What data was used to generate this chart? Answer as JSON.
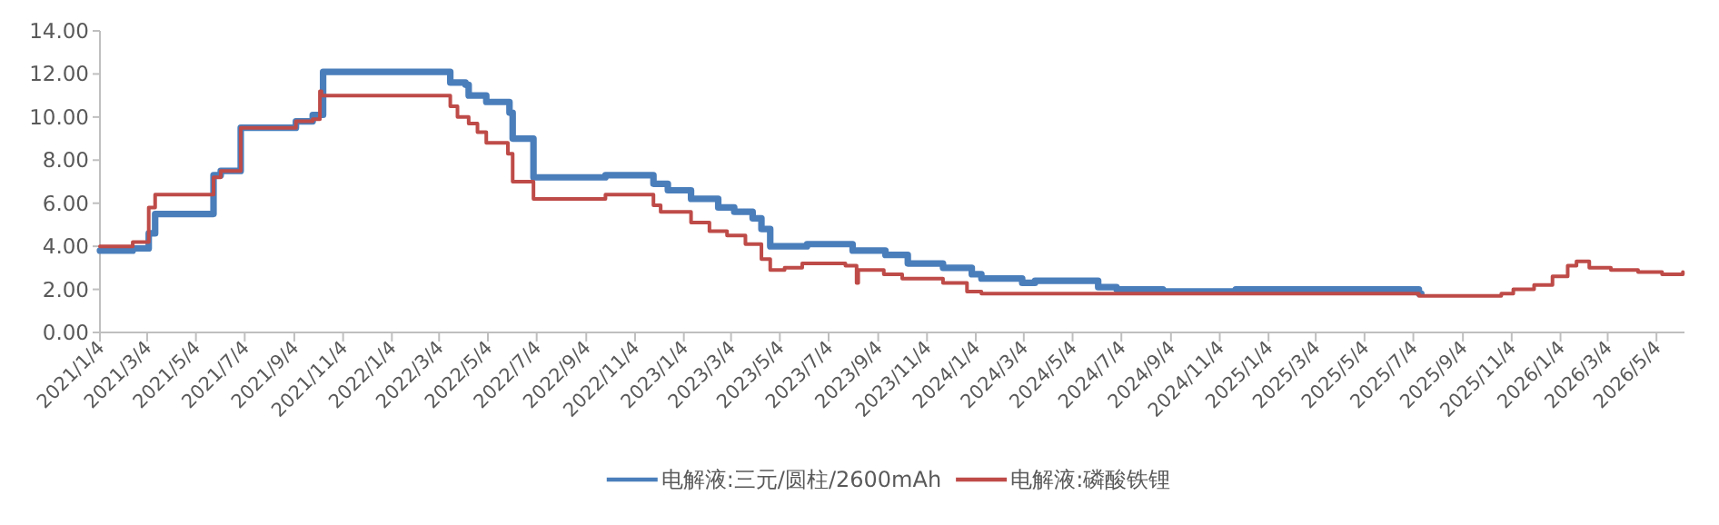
{
  "chart_data": {
    "type": "step",
    "xlim": [
      "2021-01-04",
      "2026-06-08"
    ],
    "ylim": [
      0,
      14
    ],
    "xticks": [
      {
        "value": "2021-01-04",
        "label": "2021/1/4"
      },
      {
        "value": "2021-03-04",
        "label": "2021/3/4"
      },
      {
        "value": "2021-05-04",
        "label": "2021/5/4"
      },
      {
        "value": "2021-07-04",
        "label": "2021/7/4"
      },
      {
        "value": "2021-09-04",
        "label": "2021/9/4"
      },
      {
        "value": "2021-11-04",
        "label": "2021/11/4"
      },
      {
        "value": "2022-01-04",
        "label": "2022/1/4"
      },
      {
        "value": "2022-03-04",
        "label": "2022/3/4"
      },
      {
        "value": "2022-05-04",
        "label": "2022/5/4"
      },
      {
        "value": "2022-07-04",
        "label": "2022/7/4"
      },
      {
        "value": "2022-09-04",
        "label": "2022/9/4"
      },
      {
        "value": "2022-11-04",
        "label": "2022/11/4"
      },
      {
        "value": "2023-01-04",
        "label": "2023/1/4"
      },
      {
        "value": "2023-03-04",
        "label": "2023/3/4"
      },
      {
        "value": "2023-05-04",
        "label": "2023/5/4"
      },
      {
        "value": "2023-07-04",
        "label": "2023/7/4"
      },
      {
        "value": "2023-09-04",
        "label": "2023/9/4"
      },
      {
        "value": "2023-11-04",
        "label": "2023/11/4"
      },
      {
        "value": "2024-01-04",
        "label": "2024/1/4"
      },
      {
        "value": "2024-03-04",
        "label": "2024/3/4"
      },
      {
        "value": "2024-05-04",
        "label": "2024/5/4"
      },
      {
        "value": "2024-07-04",
        "label": "2024/7/4"
      },
      {
        "value": "2024-09-04",
        "label": "2024/9/4"
      },
      {
        "value": "2024-11-04",
        "label": "2024/11/4"
      },
      {
        "value": "2025-01-04",
        "label": "2025/1/4"
      },
      {
        "value": "2025-03-04",
        "label": "2025/3/4"
      },
      {
        "value": "2025-05-04",
        "label": "2025/5/4"
      },
      {
        "value": "2025-07-04",
        "label": "2025/7/4"
      },
      {
        "value": "2025-09-04",
        "label": "2025/9/4"
      },
      {
        "value": "2025-11-04",
        "label": "2025/11/4"
      },
      {
        "value": "2026-01-04",
        "label": "2026/1/4"
      },
      {
        "value": "2026-03-04",
        "label": "2026/3/4"
      },
      {
        "value": "2026-05-04",
        "label": "2026/5/4"
      }
    ],
    "yticks": [
      {
        "value": 0,
        "label": "0.00"
      },
      {
        "value": 2,
        "label": "2.00"
      },
      {
        "value": 4,
        "label": "4.00"
      },
      {
        "value": 6,
        "label": "6.00"
      },
      {
        "value": 8,
        "label": "8.00"
      },
      {
        "value": 10,
        "label": "10.00"
      },
      {
        "value": 12,
        "label": "12.00"
      },
      {
        "value": 14,
        "label": "14.00"
      }
    ],
    "legend": "bottom",
    "marker": "none",
    "line_style": "solid",
    "series": [
      {
        "name": "电解液:三元/圆柱/2600mAh",
        "color": "#4a7ebb",
        "x": [
          "2021-01-04",
          "2021-02-14",
          "2021-03-06",
          "2021-03-14",
          "2021-05-26",
          "2021-06-04",
          "2021-06-29",
          "2021-09-06",
          "2021-09-27",
          "2021-10-10",
          "2022-03-18",
          "2022-04-06",
          "2022-04-10",
          "2022-05-02",
          "2022-05-31",
          "2022-06-04",
          "2022-06-30",
          "2022-09-28",
          "2022-11-27",
          "2022-12-15",
          "2023-01-13",
          "2023-02-16",
          "2023-03-08",
          "2023-03-31",
          "2023-04-11",
          "2023-04-22",
          "2023-06-07",
          "2023-08-03",
          "2023-09-13",
          "2023-10-11",
          "2023-11-24",
          "2023-12-30",
          "2024-01-11",
          "2024-03-02",
          "2024-03-18",
          "2024-06-05",
          "2024-06-28",
          "2024-08-25",
          "2024-11-24",
          "2025-07-11",
          "2025-07-14"
        ],
        "values": [
          3.8,
          3.9,
          4.6,
          5.5,
          7.3,
          7.5,
          9.5,
          9.8,
          10.1,
          12.1,
          11.6,
          11.5,
          11.0,
          10.7,
          10.2,
          9.0,
          7.2,
          7.3,
          6.9,
          6.6,
          6.2,
          5.8,
          5.6,
          5.3,
          4.8,
          4.0,
          4.1,
          3.8,
          3.6,
          3.2,
          3.0,
          2.7,
          2.5,
          2.3,
          2.4,
          2.1,
          2.0,
          1.9,
          2.0,
          1.8,
          1.8
        ]
      },
      {
        "name": "电解液:磷酸铁锂",
        "color": "#be4b48",
        "x": [
          "2021-01-04",
          "2021-02-14",
          "2021-03-06",
          "2021-03-14",
          "2021-05-26",
          "2021-06-04",
          "2021-06-29",
          "2021-09-06",
          "2021-09-27",
          "2021-10-06",
          "2021-10-08",
          "2022-03-18",
          "2022-03-27",
          "2022-04-10",
          "2022-04-21",
          "2022-05-02",
          "2022-05-29",
          "2022-06-04",
          "2022-06-30",
          "2022-09-28",
          "2022-11-27",
          "2022-12-06",
          "2023-01-13",
          "2023-02-05",
          "2023-02-27",
          "2023-03-22",
          "2023-04-11",
          "2023-04-22",
          "2023-05-10",
          "2023-06-01",
          "2023-07-25",
          "2023-08-08",
          "2023-08-10",
          "2023-09-11",
          "2023-10-04",
          "2023-11-24",
          "2023-12-24",
          "2024-01-11",
          "2025-07-11",
          "2025-10-22",
          "2025-11-06",
          "2025-12-02",
          "2025-12-25",
          "2026-01-13",
          "2026-01-24",
          "2026-02-09",
          "2026-03-08",
          "2026-04-11",
          "2026-05-11",
          "2026-06-06"
        ],
        "values": [
          4.0,
          4.2,
          5.8,
          6.4,
          7.2,
          7.5,
          9.5,
          9.8,
          9.9,
          11.2,
          11.0,
          10.5,
          10.0,
          9.7,
          9.3,
          8.8,
          8.3,
          7.0,
          6.2,
          6.4,
          5.9,
          5.6,
          5.1,
          4.7,
          4.5,
          4.1,
          3.4,
          2.9,
          3.0,
          3.2,
          3.1,
          2.3,
          2.9,
          2.7,
          2.5,
          2.3,
          1.9,
          1.8,
          1.7,
          1.8,
          2.0,
          2.2,
          2.6,
          3.1,
          3.3,
          3.0,
          2.9,
          2.8,
          2.7,
          2.8
        ]
      }
    ]
  }
}
